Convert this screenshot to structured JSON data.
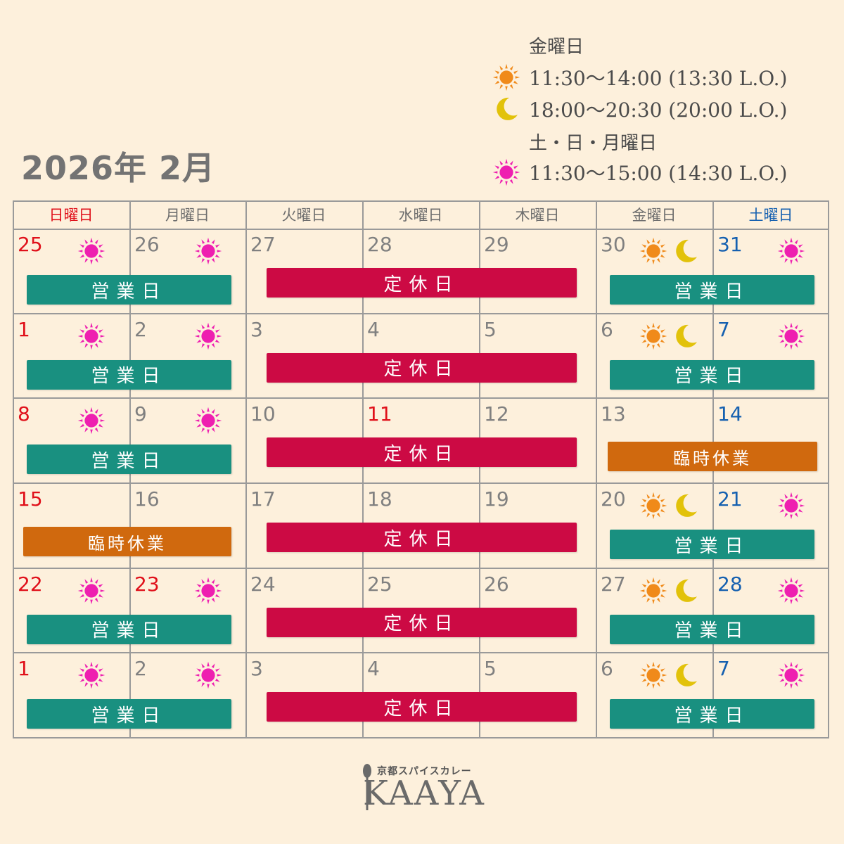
{
  "title": "2026年 2月",
  "hours": {
    "friday_label": "金曜日",
    "friday_lunch": "11:30〜14:00 (13:30 L.O.)",
    "friday_dinner": "18:00〜20:30 (20:00 L.O.)",
    "weekend_label": "土・日・月曜日",
    "weekend_lunch": "11:30〜15:00 (14:30 L.O.)"
  },
  "weekdays": [
    {
      "label": "日曜日",
      "color": "red"
    },
    {
      "label": "月曜日",
      "color": "gray"
    },
    {
      "label": "火曜日",
      "color": "gray"
    },
    {
      "label": "水曜日",
      "color": "gray"
    },
    {
      "label": "木曜日",
      "color": "gray"
    },
    {
      "label": "金曜日",
      "color": "gray"
    },
    {
      "label": "土曜日",
      "color": "blue"
    }
  ],
  "labels": {
    "open": "営業日",
    "closed": "定休日",
    "temp": "臨時休業"
  },
  "colors": {
    "open": "#199080",
    "closed": "#cc0a44",
    "temp": "#d0690e",
    "sun_pink": "#ee1fb0",
    "sun_orange": "#f08a1a",
    "moon": "#e2c20a"
  },
  "weeks": [
    {
      "days": [
        {
          "num": "25",
          "color": "red",
          "icons": [
            "pink-sun"
          ]
        },
        {
          "num": "26",
          "color": "gray",
          "icons": [
            "pink-sun"
          ]
        },
        {
          "num": "27",
          "color": "gray",
          "icons": []
        },
        {
          "num": "28",
          "color": "gray",
          "icons": []
        },
        {
          "num": "29",
          "color": "gray",
          "icons": []
        },
        {
          "num": "30",
          "color": "gray",
          "icons": [
            "orange-sun",
            "moon"
          ]
        },
        {
          "num": "31",
          "color": "blue",
          "icons": [
            "pink-sun"
          ]
        }
      ],
      "bars": [
        {
          "type": "open",
          "span": "sun-mon"
        },
        {
          "type": "closed",
          "span": "tue-thu"
        },
        {
          "type": "open",
          "span": "fri-sat"
        }
      ]
    },
    {
      "days": [
        {
          "num": "1",
          "color": "red",
          "icons": [
            "pink-sun"
          ]
        },
        {
          "num": "2",
          "color": "gray",
          "icons": [
            "pink-sun"
          ]
        },
        {
          "num": "3",
          "color": "gray",
          "icons": []
        },
        {
          "num": "4",
          "color": "gray",
          "icons": []
        },
        {
          "num": "5",
          "color": "gray",
          "icons": []
        },
        {
          "num": "6",
          "color": "gray",
          "icons": [
            "orange-sun",
            "moon"
          ]
        },
        {
          "num": "7",
          "color": "blue",
          "icons": [
            "pink-sun"
          ]
        }
      ],
      "bars": [
        {
          "type": "open",
          "span": "sun-mon"
        },
        {
          "type": "closed",
          "span": "tue-thu"
        },
        {
          "type": "open",
          "span": "fri-sat"
        }
      ]
    },
    {
      "days": [
        {
          "num": "8",
          "color": "red",
          "icons": [
            "pink-sun"
          ]
        },
        {
          "num": "9",
          "color": "gray",
          "icons": [
            "pink-sun"
          ]
        },
        {
          "num": "10",
          "color": "gray",
          "icons": []
        },
        {
          "num": "11",
          "color": "red",
          "icons": []
        },
        {
          "num": "12",
          "color": "gray",
          "icons": []
        },
        {
          "num": "13",
          "color": "gray",
          "icons": []
        },
        {
          "num": "14",
          "color": "blue",
          "icons": []
        }
      ],
      "bars": [
        {
          "type": "open",
          "span": "sun-mon"
        },
        {
          "type": "closed",
          "span": "tue-thu"
        },
        {
          "type": "temp",
          "span": "fri-sat"
        }
      ]
    },
    {
      "days": [
        {
          "num": "15",
          "color": "red",
          "icons": []
        },
        {
          "num": "16",
          "color": "gray",
          "icons": []
        },
        {
          "num": "17",
          "color": "gray",
          "icons": []
        },
        {
          "num": "18",
          "color": "gray",
          "icons": []
        },
        {
          "num": "19",
          "color": "gray",
          "icons": []
        },
        {
          "num": "20",
          "color": "gray",
          "icons": [
            "orange-sun",
            "moon"
          ]
        },
        {
          "num": "21",
          "color": "blue",
          "icons": [
            "pink-sun"
          ]
        }
      ],
      "bars": [
        {
          "type": "temp",
          "span": "sun-mon"
        },
        {
          "type": "closed",
          "span": "tue-thu"
        },
        {
          "type": "open",
          "span": "fri-sat"
        }
      ]
    },
    {
      "days": [
        {
          "num": "22",
          "color": "red",
          "icons": [
            "pink-sun"
          ]
        },
        {
          "num": "23",
          "color": "red",
          "icons": [
            "pink-sun"
          ]
        },
        {
          "num": "24",
          "color": "gray",
          "icons": []
        },
        {
          "num": "25",
          "color": "gray",
          "icons": []
        },
        {
          "num": "26",
          "color": "gray",
          "icons": []
        },
        {
          "num": "27",
          "color": "gray",
          "icons": [
            "orange-sun",
            "moon"
          ]
        },
        {
          "num": "28",
          "color": "blue",
          "icons": [
            "pink-sun"
          ]
        }
      ],
      "bars": [
        {
          "type": "open",
          "span": "sun-mon"
        },
        {
          "type": "closed",
          "span": "tue-thu"
        },
        {
          "type": "open",
          "span": "fri-sat"
        }
      ]
    },
    {
      "days": [
        {
          "num": "1",
          "color": "red",
          "icons": [
            "pink-sun"
          ]
        },
        {
          "num": "2",
          "color": "gray",
          "icons": [
            "pink-sun"
          ]
        },
        {
          "num": "3",
          "color": "gray",
          "icons": []
        },
        {
          "num": "4",
          "color": "gray",
          "icons": []
        },
        {
          "num": "5",
          "color": "gray",
          "icons": []
        },
        {
          "num": "6",
          "color": "gray",
          "icons": [
            "orange-sun",
            "moon"
          ]
        },
        {
          "num": "7",
          "color": "blue",
          "icons": [
            "pink-sun"
          ]
        }
      ],
      "bars": [
        {
          "type": "open",
          "span": "sun-mon"
        },
        {
          "type": "closed",
          "span": "tue-thu"
        },
        {
          "type": "open",
          "span": "fri-sat"
        }
      ]
    }
  ],
  "logo": {
    "tagline": "京都スパイスカレー",
    "name": "KAAYA"
  }
}
